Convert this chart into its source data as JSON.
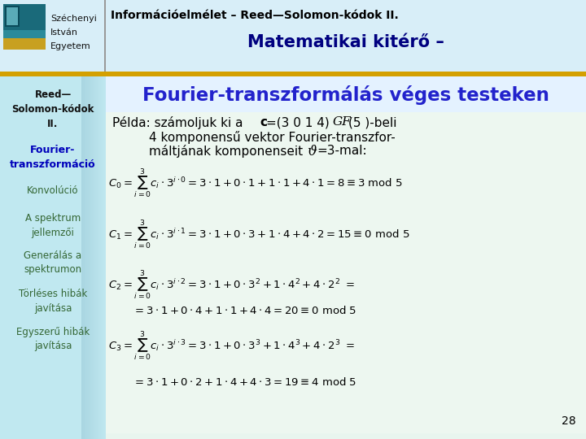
{
  "title_course": "Információelmélet – Reed—Solomon-kódok II.",
  "title_main": "Matematikai kitérő –",
  "title_sub": "Fourier-transzformálás véges testeken",
  "slide_number": "28",
  "university_lines": [
    "Széchenyi",
    "István",
    "Egyetem"
  ],
  "bg_color": "#e8f5ee",
  "sidebar_bg": "#c0e8f0",
  "gold_bar_color": "#d4a000",
  "header_title_color": "#000080",
  "subtitle_color": "#2222cc",
  "course_title_color": "#000000",
  "logo_teal": "#1a6a7a",
  "logo_teal2": "#2a8a9a",
  "logo_gold": "#c8a020",
  "sep_line_color": "#999999",
  "page_num_color": "#000000"
}
